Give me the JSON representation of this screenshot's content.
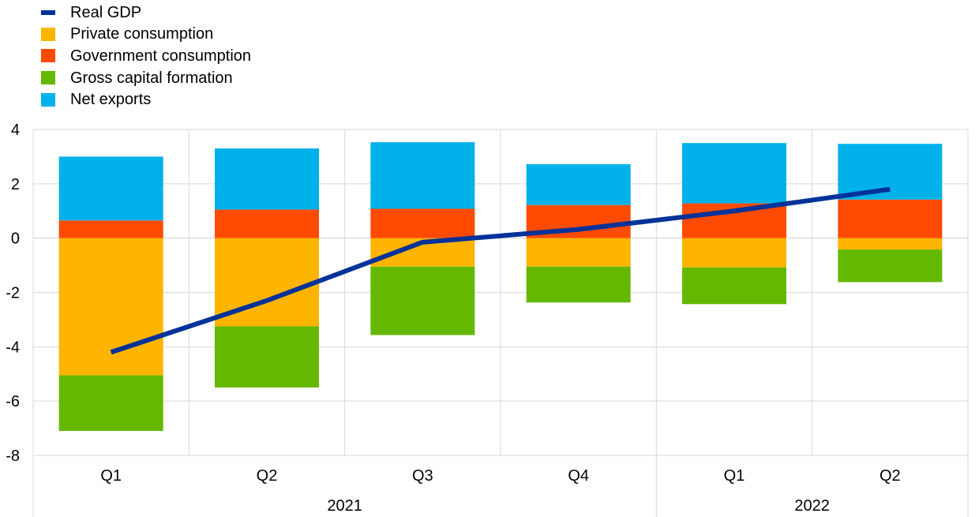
{
  "chart_data": {
    "type": "bar",
    "stacked": true,
    "categories": [
      "Q1",
      "Q2",
      "Q3",
      "Q4",
      "Q1",
      "Q2"
    ],
    "year_groups": [
      {
        "label": "2021",
        "span": [
          0,
          3
        ]
      },
      {
        "label": "2022",
        "span": [
          4,
          5
        ]
      }
    ],
    "series": [
      {
        "name": "Private consumption",
        "kind": "bar",
        "color": "#ffb400",
        "values": [
          -5.05,
          -3.25,
          -1.05,
          -1.05,
          -1.08,
          -0.42
        ]
      },
      {
        "name": "Government consumption",
        "kind": "bar",
        "color": "#ff4b00",
        "values": [
          0.65,
          1.05,
          1.08,
          1.22,
          1.28,
          1.42
        ]
      },
      {
        "name": "Gross capital formation",
        "kind": "bar",
        "color": "#65b800",
        "values": [
          -2.05,
          -2.25,
          -2.52,
          -1.32,
          -1.35,
          -1.2
        ]
      },
      {
        "name": "Net exports",
        "kind": "bar",
        "color": "#00b1ea",
        "values": [
          2.35,
          2.25,
          2.45,
          1.5,
          2.22,
          2.05
        ]
      },
      {
        "name": "Real GDP",
        "kind": "line",
        "color": "#003299",
        "values": [
          -4.2,
          -2.3,
          -0.15,
          0.32,
          1.0,
          1.8
        ]
      }
    ],
    "legend_order": [
      "Real GDP",
      "Private consumption",
      "Government consumption",
      "Gross capital formation",
      "Net exports"
    ],
    "y_ticks": [
      "4",
      "2",
      "0",
      "-2",
      "-4",
      "-6",
      "-8"
    ],
    "ylim": [
      -8,
      4
    ],
    "grid": true,
    "legend_position": "top-left",
    "title": "",
    "xlabel": "",
    "ylabel": ""
  }
}
